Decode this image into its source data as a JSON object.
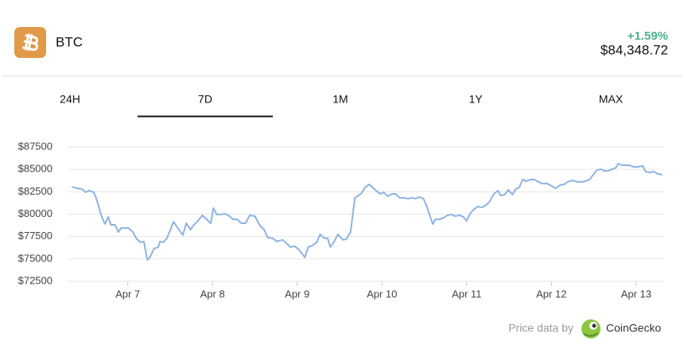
{
  "header": {
    "symbol": "BTC",
    "change": "+1.59%",
    "price": "$84,348.72"
  },
  "tabs": [
    "24H",
    "7D",
    "1M",
    "1Y",
    "MAX"
  ],
  "active_tab": 1,
  "footer": {
    "attribution": "Price data by",
    "provider": "CoinGecko"
  },
  "chart_data": {
    "type": "line",
    "color": "#8cb3e3",
    "grid": true,
    "xlim": [
      6.29,
      13.33
    ],
    "ylim": [
      72500,
      87500
    ],
    "xticks": [
      {
        "value": 7,
        "label": "Apr 7"
      },
      {
        "value": 8,
        "label": "Apr 8"
      },
      {
        "value": 9,
        "label": "Apr 9"
      },
      {
        "value": 10,
        "label": "Apr 10"
      },
      {
        "value": 11,
        "label": "Apr 11"
      },
      {
        "value": 12,
        "label": "Apr 12"
      },
      {
        "value": 13,
        "label": "Apr 13"
      }
    ],
    "yticks": [
      {
        "value": 72500,
        "label": "$72500"
      },
      {
        "value": 75000,
        "label": "$75000"
      },
      {
        "value": 77500,
        "label": "$77500"
      },
      {
        "value": 80000,
        "label": "$80000"
      },
      {
        "value": 82500,
        "label": "$82500"
      },
      {
        "value": 85000,
        "label": "$85000"
      },
      {
        "value": 87500,
        "label": "$87500"
      }
    ],
    "x": [
      6.34,
      6.4,
      6.46,
      6.5,
      6.54,
      6.6,
      6.63,
      6.69,
      6.73,
      6.77,
      6.8,
      6.85,
      6.89,
      6.92,
      7.01,
      7.06,
      7.1,
      7.15,
      7.19,
      7.23,
      7.26,
      7.31,
      7.36,
      7.38,
      7.42,
      7.46,
      7.5,
      7.54,
      7.59,
      7.65,
      7.69,
      7.74,
      7.78,
      7.83,
      7.88,
      7.93,
      7.98,
      8.01,
      8.05,
      8.1,
      8.15,
      8.2,
      8.24,
      8.29,
      8.34,
      8.39,
      8.44,
      8.5,
      8.56,
      8.61,
      8.65,
      8.71,
      8.76,
      8.79,
      8.83,
      8.88,
      8.92,
      8.97,
      9.02,
      9.09,
      9.13,
      9.18,
      9.23,
      9.27,
      9.32,
      9.36,
      9.39,
      9.43,
      9.48,
      9.54,
      9.58,
      9.63,
      9.68,
      9.71,
      9.76,
      9.8,
      9.85,
      9.88,
      9.93,
      9.98,
      10.02,
      10.07,
      10.12,
      10.16,
      10.21,
      10.26,
      10.31,
      10.35,
      10.39,
      10.44,
      10.49,
      10.53,
      10.6,
      10.63,
      10.68,
      10.73,
      10.77,
      10.82,
      10.86,
      10.92,
      10.96,
      11.0,
      11.04,
      11.08,
      11.13,
      11.18,
      11.23,
      11.27,
      11.32,
      11.37,
      11.4,
      11.45,
      11.49,
      11.54,
      11.58,
      11.62,
      11.66,
      11.7,
      11.75,
      11.8,
      11.85,
      11.89,
      11.95,
      12.0,
      12.05,
      12.1,
      12.15,
      12.19,
      12.25,
      12.31,
      12.35,
      12.4,
      12.45,
      12.5,
      12.54,
      12.59,
      12.62,
      12.67,
      12.72,
      12.76,
      12.79,
      12.83,
      12.88,
      12.92,
      12.97,
      13.01,
      13.08,
      13.11,
      13.16,
      13.21,
      13.26,
      13.31
    ],
    "values": [
      83060,
      82880,
      82800,
      82440,
      82620,
      82440,
      81730,
      79780,
      78890,
      79690,
      78800,
      78800,
      78000,
      78450,
      78450,
      78000,
      77300,
      76850,
      76940,
      74900,
      75160,
      76140,
      76320,
      76940,
      76850,
      77300,
      78180,
      79160,
      78450,
      77650,
      78980,
      78270,
      78800,
      79250,
      79870,
      79420,
      78980,
      80670,
      79960,
      79960,
      80050,
      79780,
      79420,
      79420,
      78980,
      78980,
      79870,
      79780,
      78710,
      78270,
      77380,
      77300,
      76940,
      77030,
      77120,
      76670,
      76320,
      76410,
      76050,
      75160,
      76320,
      76500,
      76850,
      77740,
      77300,
      77300,
      76320,
      76850,
      77740,
      77120,
      77210,
      78000,
      81820,
      82000,
      82350,
      82970,
      83330,
      83060,
      82620,
      82260,
      82440,
      82000,
      82260,
      82260,
      81820,
      81820,
      81730,
      81820,
      81730,
      81910,
      81730,
      80840,
      78890,
      79420,
      79420,
      79600,
      79870,
      79960,
      79780,
      79870,
      79690,
      79250,
      80050,
      80490,
      80840,
      80750,
      81020,
      81380,
      82260,
      82620,
      82090,
      82180,
      82710,
      82180,
      82800,
      82970,
      83860,
      83680,
      83860,
      83860,
      83590,
      83420,
      83420,
      83150,
      82880,
      83240,
      83330,
      83590,
      83770,
      83590,
      83590,
      83680,
      83860,
      84480,
      84930,
      85020,
      84840,
      84840,
      85020,
      85190,
      85640,
      85460,
      85460,
      85460,
      85280,
      85280,
      85370,
      84750,
      84660,
      84750,
      84480,
      84390
    ]
  }
}
